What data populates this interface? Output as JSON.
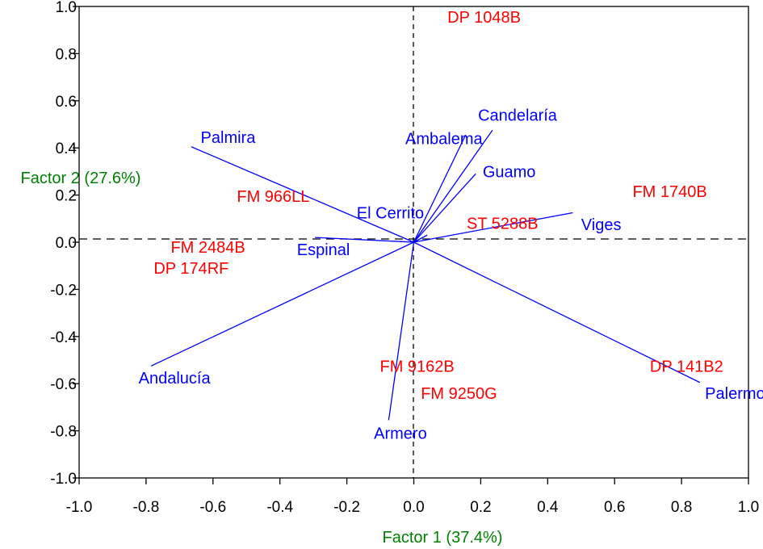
{
  "chart_data": {
    "type": "scatter",
    "subtype": "biplot",
    "xlabel": "Factor 1 (37.4%)",
    "ylabel": "Factor 2 (27.6%)",
    "xlim": [
      -1.0,
      1.0
    ],
    "ylim": [
      -1.0,
      1.0
    ],
    "x_ticks": [
      "-1.0",
      "-0.8",
      "-0.6",
      "-0.4",
      "-0.2",
      "0.0",
      "0.2",
      "0.4",
      "0.6",
      "0.8",
      "1.0"
    ],
    "y_ticks": [
      "-1.0",
      "-0.8",
      "-0.6",
      "-0.4",
      "-0.2",
      "0.0",
      "0.2",
      "0.4",
      "0.6",
      "0.8",
      "1.0"
    ],
    "grid": false,
    "reference_lines": "dashed lines at x = 0 and y = 0",
    "colors": {
      "environments": "#0000ff",
      "genotypes": "#ff0000",
      "axis_labels": "#008000",
      "axes": "#000000"
    },
    "environments": [
      {
        "label": "Palmira",
        "x": -0.665,
        "y": 0.405,
        "label_x": -0.555,
        "label_y": 0.445
      },
      {
        "label": "Ambalema",
        "x": 0.155,
        "y": 0.455,
        "label_x": 0.09,
        "label_y": 0.44
      },
      {
        "label": "Candelaría",
        "x": 0.235,
        "y": 0.475,
        "label_x": 0.31,
        "label_y": 0.54
      },
      {
        "label": "Guamo",
        "x": 0.185,
        "y": 0.29,
        "label_x": 0.285,
        "label_y": 0.3
      },
      {
        "label": "El Cerrito",
        "x": 0.04,
        "y": 0.03,
        "label_x": -0.07,
        "label_y": 0.125
      },
      {
        "label": "Espinal",
        "x": -0.295,
        "y": 0.02,
        "label_x": -0.27,
        "label_y": -0.03
      },
      {
        "label": "Viges",
        "x": 0.475,
        "y": 0.125,
        "label_x": 0.56,
        "label_y": 0.075
      },
      {
        "label": "Andalucía",
        "x": -0.785,
        "y": -0.525,
        "label_x": -0.715,
        "label_y": -0.575
      },
      {
        "label": "Armero",
        "x": -0.075,
        "y": -0.755,
        "label_x": -0.04,
        "label_y": -0.81
      },
      {
        "label": "Palermo",
        "x": 0.855,
        "y": -0.595,
        "label_x": 0.96,
        "label_y": -0.64
      }
    ],
    "genotypes": [
      {
        "label": "DP 1048B",
        "x": 0.21,
        "y": 0.955
      },
      {
        "label": "FM 966LL",
        "x": -0.42,
        "y": 0.195
      },
      {
        "label": "FM 1740B",
        "x": 0.765,
        "y": 0.215
      },
      {
        "label": "ST 5288B",
        "x": 0.265,
        "y": 0.08
      },
      {
        "label": "FM 2484B",
        "x": -0.615,
        "y": -0.02
      },
      {
        "label": "DP 174RF",
        "x": -0.665,
        "y": -0.11
      },
      {
        "label": "FM 9162B",
        "x": 0.01,
        "y": -0.525
      },
      {
        "label": "FM 9250G",
        "x": 0.135,
        "y": -0.64
      },
      {
        "label": "DP 141B2",
        "x": 0.815,
        "y": -0.525
      }
    ]
  }
}
